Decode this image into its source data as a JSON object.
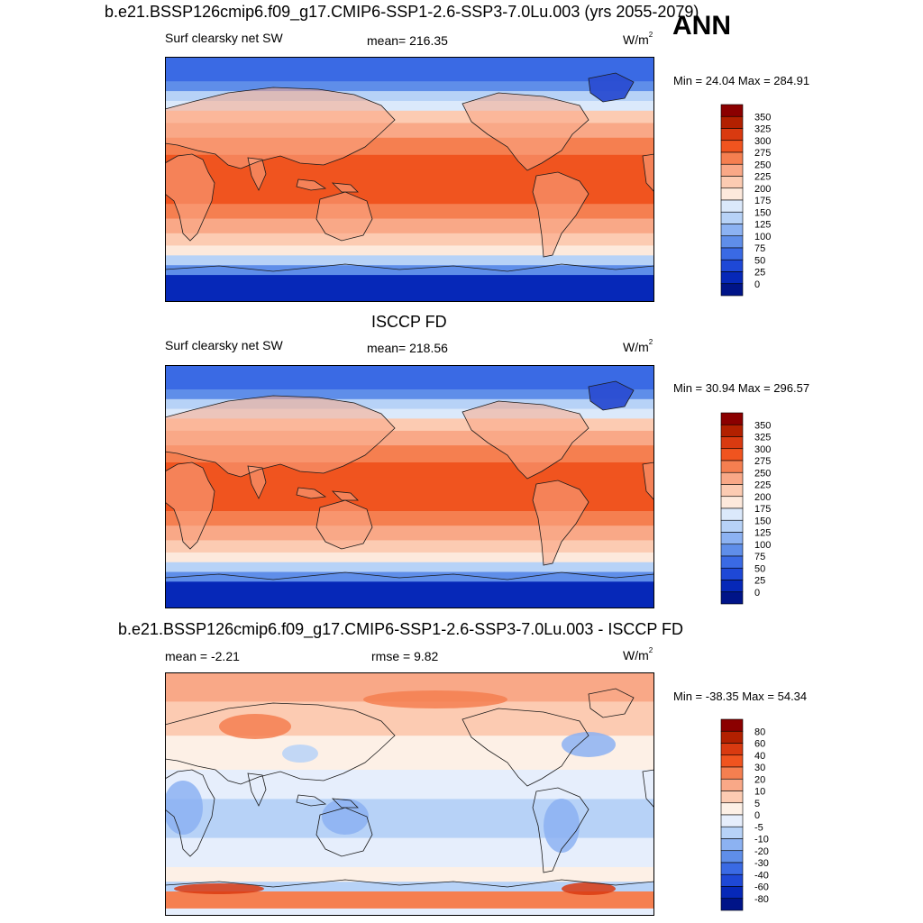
{
  "season": "ANN",
  "panels": [
    {
      "id": "model",
      "title": "b.e21.BSSP126cmip6.f09_g17.CMIP6-SSP1-2.6-SSP3-7.0Lu.003 (yrs 2055-2079)",
      "variable": "Surf clearsky net SW",
      "stat_text": "mean= 216.35",
      "units_base": "W/m",
      "units_exp": "2",
      "minmax": "Min =  24.04 Max = 284.91",
      "colorbar_labels": [
        "350",
        "325",
        "300",
        "275",
        "250",
        "225",
        "200",
        "175",
        "150",
        "125",
        "100",
        "75",
        "50",
        "25",
        "0"
      ],
      "colorbar_colors": [
        "#8b0000",
        "#b22000",
        "#d93a10",
        "#f0541f",
        "#f57f50",
        "#f9a887",
        "#fccbb2",
        "#fde9dc",
        "#dbe9fb",
        "#b7d2f7",
        "#8cb2f2",
        "#5f8ee9",
        "#3a6ae4",
        "#1e48d6",
        "#0628b8",
        "#001488"
      ],
      "map_colors": {
        "ocean_top": "#2a5fe0",
        "ocean_mid": "#f4561f",
        "land": "#f39a78",
        "ice": "#0e3ec8"
      }
    },
    {
      "id": "obs",
      "title": "ISCCP FD",
      "variable": "Surf clearsky net SW",
      "stat_text": "mean= 218.56",
      "units_base": "W/m",
      "units_exp": "2",
      "minmax": "Min =  30.94 Max = 296.57",
      "colorbar_labels": [
        "350",
        "325",
        "300",
        "275",
        "250",
        "225",
        "200",
        "175",
        "150",
        "125",
        "100",
        "75",
        "50",
        "25",
        "0"
      ],
      "colorbar_colors": [
        "#8b0000",
        "#b22000",
        "#d93a10",
        "#f0541f",
        "#f57f50",
        "#f9a887",
        "#fccbb2",
        "#fde9dc",
        "#dbe9fb",
        "#b7d2f7",
        "#8cb2f2",
        "#5f8ee9",
        "#3a6ae4",
        "#1e48d6",
        "#0628b8",
        "#001488"
      ],
      "map_colors": {
        "ocean_top": "#2a5fe0",
        "ocean_mid": "#f4561f",
        "land": "#f39a78",
        "ice": "#0e3ec8"
      }
    },
    {
      "id": "diff",
      "title": "b.e21.BSSP126cmip6.f09_g17.CMIP6-SSP1-2.6-SSP3-7.0Lu.003 - ISCCP FD",
      "stat_text": "mean =  -2.21",
      "rmse_text": "rmse =    9.82",
      "units_base": "W/m",
      "units_exp": "2",
      "minmax": "Min = -38.35 Max =  54.34",
      "colorbar_labels": [
        "80",
        "60",
        "40",
        "30",
        "20",
        "10",
        "5",
        "0",
        "-5",
        "-10",
        "-20",
        "-30",
        "-40",
        "-60",
        "-80"
      ],
      "colorbar_colors": [
        "#8b0000",
        "#b22000",
        "#d93a10",
        "#f0541f",
        "#f57f50",
        "#f9a887",
        "#fccbb2",
        "#fdf0e6",
        "#e6eefc",
        "#b7d2f7",
        "#8cb2f2",
        "#5f8ee9",
        "#3a6ae4",
        "#1e48d6",
        "#0628b8",
        "#001488"
      ],
      "map_colors": {
        "north": "#f4a07e",
        "tropics": "#c7dcf6",
        "south": "#b3cdf3",
        "pole": "#f0541f"
      }
    }
  ],
  "chart_data": [
    {
      "type": "heatmap",
      "title": "b.e21.BSSP126cmip6.f09_g17.CMIP6-SSP1-2.6-SSP3-7.0Lu.003 (yrs 2055-2079)",
      "variable": "Surf clearsky net SW",
      "units": "W/m2",
      "mean": 216.35,
      "min": 24.04,
      "max": 284.91,
      "contour_levels": [
        0,
        25,
        50,
        75,
        100,
        125,
        150,
        175,
        200,
        225,
        250,
        275,
        300,
        325,
        350
      ]
    },
    {
      "type": "heatmap",
      "title": "ISCCP FD",
      "variable": "Surf clearsky net SW",
      "units": "W/m2",
      "mean": 218.56,
      "min": 30.94,
      "max": 296.57,
      "contour_levels": [
        0,
        25,
        50,
        75,
        100,
        125,
        150,
        175,
        200,
        225,
        250,
        275,
        300,
        325,
        350
      ]
    },
    {
      "type": "heatmap",
      "title": "b.e21.BSSP126cmip6.f09_g17.CMIP6-SSP1-2.6-SSP3-7.0Lu.003 - ISCCP FD",
      "units": "W/m2",
      "mean": -2.21,
      "rmse": 9.82,
      "min": -38.35,
      "max": 54.34,
      "contour_levels": [
        -80,
        -60,
        -40,
        -30,
        -20,
        -10,
        -5,
        0,
        5,
        10,
        20,
        30,
        40,
        60,
        80
      ]
    }
  ]
}
